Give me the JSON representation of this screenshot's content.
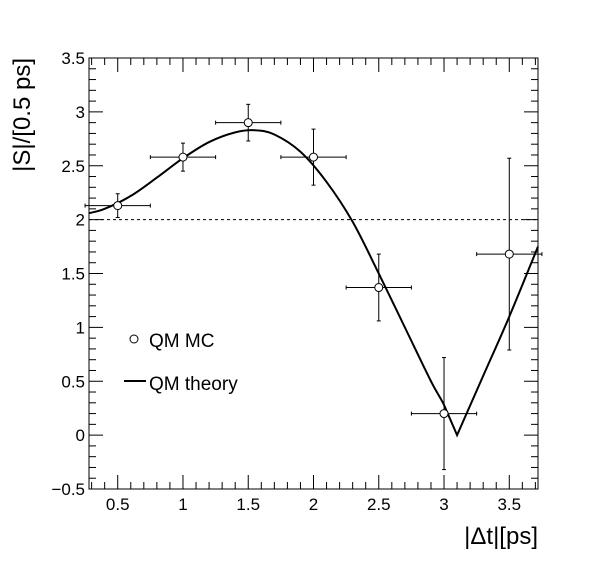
{
  "chart_data": {
    "type": "scatter",
    "xlabel": "|Δt|[ps]",
    "ylabel": "|S|/[0.5 ps]",
    "xlim": [
      0.28,
      3.72
    ],
    "ylim": [
      -0.5,
      3.5
    ],
    "x_ticks": [
      0.5,
      1,
      1.5,
      2,
      2.5,
      3,
      3.5
    ],
    "x_tick_labels": [
      "0.5",
      "1",
      "1.5",
      "2",
      "2.5",
      "3",
      "3.5"
    ],
    "y_ticks": [
      -0.5,
      0,
      0.5,
      1,
      1.5,
      2,
      2.5,
      3,
      3.5
    ],
    "y_tick_labels": [
      "−0.5",
      "0",
      "0.5",
      "1",
      "1.5",
      "2",
      "2.5",
      "3",
      "3.5"
    ],
    "grid": false,
    "legend_position": "left",
    "reference_line": {
      "y": 2,
      "style": "dashed"
    },
    "series": [
      {
        "name": "QM MC",
        "kind": "points-with-errors",
        "marker": "open-circle",
        "points": [
          {
            "x": 0.5,
            "y": 2.13,
            "xerr": 0.25,
            "yerr": 0.11
          },
          {
            "x": 1.0,
            "y": 2.58,
            "xerr": 0.25,
            "yerr": 0.13
          },
          {
            "x": 1.5,
            "y": 2.9,
            "xerr": 0.25,
            "yerr": 0.17
          },
          {
            "x": 2.0,
            "y": 2.58,
            "xerr": 0.25,
            "yerr": 0.26
          },
          {
            "x": 2.5,
            "y": 1.37,
            "xerr": 0.25,
            "yerr": 0.31
          },
          {
            "x": 3.0,
            "y": 0.2,
            "xerr": 0.25,
            "yerr": 0.52
          },
          {
            "x": 3.5,
            "y": 1.68,
            "xerr": 0.25,
            "yerr": 0.89
          }
        ]
      },
      {
        "name": "QM theory",
        "kind": "line",
        "x": [
          0.28,
          0.4,
          0.6,
          0.8,
          1.0,
          1.2,
          1.4,
          1.55,
          1.7,
          1.9,
          2.1,
          2.3,
          2.5,
          2.7,
          2.9,
          3.0,
          3.1,
          3.3,
          3.5,
          3.72
        ],
        "y": [
          2.06,
          2.1,
          2.22,
          2.39,
          2.57,
          2.72,
          2.81,
          2.83,
          2.79,
          2.63,
          2.35,
          1.98,
          1.5,
          1.0,
          0.5,
          0.28,
          0.0,
          0.55,
          1.1,
          1.75
        ]
      }
    ]
  }
}
